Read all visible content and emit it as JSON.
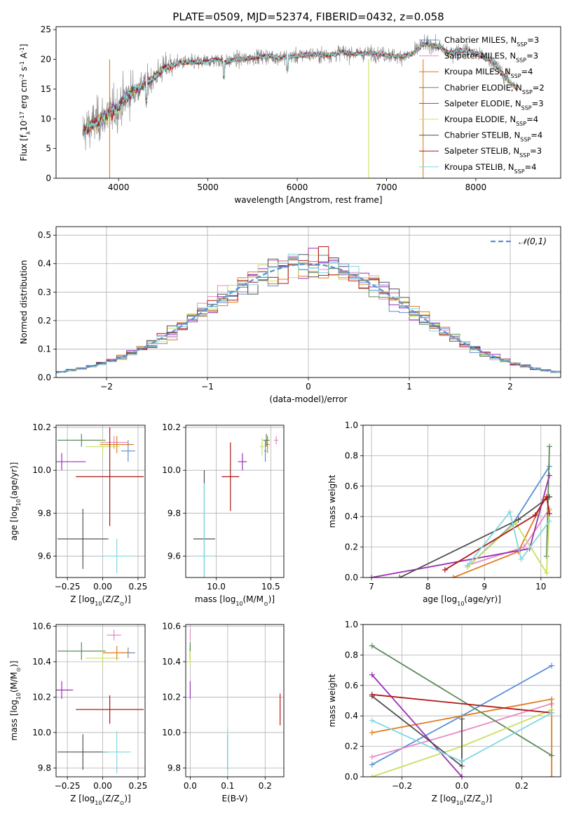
{
  "figure": {
    "title": "PLATE=0509, MJD=52374, FIBERID=0432, z=0.058"
  },
  "legend_models": [
    {
      "label": "Chabrier MILES, N$_{SSP}$=3",
      "color": "#5b8fd6"
    },
    {
      "label": "Salpeter MILES, N$_{SSP}$=3",
      "color": "#e78ac3"
    },
    {
      "label": "Kroupa MILES, N$_{SSP}$=4",
      "color": "#e07b1f"
    },
    {
      "label": "Chabrier ELODIE, N$_{SSP}$=2",
      "color": "#5a8a5a"
    },
    {
      "label": "Salpeter ELODIE, N$_{SSP}$=3",
      "color": "#9b30b5"
    },
    {
      "label": "Kroupa ELODIE, N$_{SSP}$=4",
      "color": "#c8e060"
    },
    {
      "label": "Chabrier STELIB, N$_{SSP}$=4",
      "color": "#505050"
    },
    {
      "label": "Salpeter STELIB, N$_{SSP}$=3",
      "color": "#b01818"
    },
    {
      "label": "Kroupa STELIB, N$_{SSP}$=4",
      "color": "#7fd8e0"
    }
  ],
  "chart_data": [
    {
      "id": "spectrum",
      "type": "line",
      "title": "PLATE=0509, MJD=52374, FIBERID=0432, z=0.058",
      "xlabel": "wavelength [Angstrom, rest frame]",
      "ylabel": "Flux [f$_{\\lambda}$10$^{-17}$ erg cm$^{-2}$ s$^{-1}$ A$^{-1}$]",
      "xlim": [
        3300,
        8950
      ],
      "ylim": [
        0,
        25.5
      ],
      "xticks": [
        4000,
        5000,
        6000,
        7000,
        8000
      ],
      "yticks": [
        0,
        5,
        10,
        15,
        20,
        25
      ],
      "data_color": "#808080",
      "continuum": [
        [
          3600,
          8
        ],
        [
          3700,
          9
        ],
        [
          3800,
          10
        ],
        [
          3900,
          11
        ],
        [
          4000,
          12
        ],
        [
          4100,
          14
        ],
        [
          4200,
          15
        ],
        [
          4300,
          16
        ],
        [
          4400,
          17
        ],
        [
          4500,
          18.5
        ],
        [
          4600,
          19
        ],
        [
          4700,
          19.5
        ],
        [
          4800,
          19.5
        ],
        [
          4900,
          19.5
        ],
        [
          5000,
          19.7
        ],
        [
          5100,
          20
        ],
        [
          5200,
          19.5
        ],
        [
          5300,
          20
        ],
        [
          5400,
          20
        ],
        [
          5500,
          20.3
        ],
        [
          5600,
          20.5
        ],
        [
          5700,
          20.5
        ],
        [
          5800,
          20.3
        ],
        [
          5900,
          20.5
        ],
        [
          6000,
          20.5
        ],
        [
          6100,
          20.8
        ],
        [
          6200,
          20.8
        ],
        [
          6300,
          20.7
        ],
        [
          6400,
          20.8
        ],
        [
          6500,
          21.2
        ],
        [
          6600,
          21
        ],
        [
          6700,
          21
        ],
        [
          6800,
          21
        ],
        [
          6900,
          21
        ],
        [
          7000,
          20.8
        ],
        [
          7100,
          20.5
        ],
        [
          7200,
          20.5
        ],
        [
          7300,
          21
        ],
        [
          7400,
          22.5
        ],
        [
          7500,
          22.5
        ],
        [
          7600,
          22
        ],
        [
          7700,
          21
        ],
        [
          7800,
          21.5
        ],
        [
          7900,
          21.5
        ],
        [
          8000,
          21
        ],
        [
          8100,
          20.3
        ],
        [
          8200,
          19.5
        ],
        [
          8300,
          17.5
        ],
        [
          8400,
          16
        ],
        [
          8460,
          15
        ]
      ]
    },
    {
      "id": "residual-histogram",
      "type": "area",
      "xlabel": "(data-model)/error",
      "ylabel": "Normed distribution",
      "xlim": [
        -2.5,
        2.5
      ],
      "ylim": [
        0,
        0.53
      ],
      "xticks": [
        -2,
        -1,
        0,
        1,
        2
      ],
      "yticks": [
        0.0,
        0.1,
        0.2,
        0.3,
        0.4,
        0.5
      ],
      "legend": "$\\mathcal{N}(0,1)$",
      "bin_width": 0.1,
      "curve": {
        "mu": 0,
        "sigma": 1,
        "color": "#5b8fd6"
      }
    },
    {
      "id": "age-vs-metallicity",
      "type": "scatter",
      "xlabel": "Z [log$_{10}$(Z/Z$_{\\odot}$)]",
      "ylabel": "age  [log$_{10}$(age/yr)]",
      "xlim": [
        -0.33,
        0.3
      ],
      "ylim": [
        9.5,
        10.21
      ],
      "xticks": [
        -0.25,
        0.0,
        0.25
      ],
      "yticks": [
        9.6,
        9.8,
        10.0,
        10.2
      ],
      "points": [
        {
          "model": 0,
          "x": 0.18,
          "y": 10.09,
          "xerr": 0.05,
          "yerr": 0.05
        },
        {
          "model": 1,
          "x": 0.08,
          "y": 10.13,
          "xerr": 0.1,
          "yerr": 0.03
        },
        {
          "model": 2,
          "x": 0.1,
          "y": 10.12,
          "xerr": 0.12,
          "yerr": 0.04
        },
        {
          "model": 3,
          "x": -0.15,
          "y": 10.14,
          "xerr": 0.17,
          "yerr": 0.03
        },
        {
          "model": 4,
          "x": -0.29,
          "y": 10.04,
          "xerr": 0.17,
          "yerr": 0.04
        },
        {
          "model": 5,
          "x": 0.0,
          "y": 10.11,
          "xerr": 0.12,
          "yerr": 0.04
        },
        {
          "model": 6,
          "x": -0.14,
          "y": 9.68,
          "xerr": 0.18,
          "yerr": 0.14
        },
        {
          "model": 7,
          "x": 0.05,
          "y": 9.97,
          "xerr": 0.24,
          "yerr": 0.23
        },
        {
          "model": 8,
          "x": 0.1,
          "y": 9.6,
          "xerr": 0.1,
          "yerr": 0.08
        }
      ]
    },
    {
      "id": "age-vs-mass",
      "type": "scatter",
      "xlabel": "mass [log$_{10}$(M/M$_{\\odot}$)]",
      "ylabel": "",
      "xlim": [
        9.72,
        10.62
      ],
      "ylim": [
        9.5,
        10.21
      ],
      "xticks": [
        10.0,
        10.5
      ],
      "yticks": [
        9.6,
        9.8,
        10.0,
        10.2
      ],
      "points": [
        {
          "model": 0,
          "x": 10.45,
          "y": 10.09,
          "xerr": 0.01,
          "yerr": 0.05
        },
        {
          "model": 1,
          "x": 10.55,
          "y": 10.14,
          "xerr": 0.02,
          "yerr": 0.02
        },
        {
          "model": 2,
          "x": 10.47,
          "y": 10.12,
          "xerr": 0.02,
          "yerr": 0.04
        },
        {
          "model": 3,
          "x": 10.46,
          "y": 10.14,
          "xerr": 0.03,
          "yerr": 0.03
        },
        {
          "model": 4,
          "x": 10.24,
          "y": 10.04,
          "xerr": 0.04,
          "yerr": 0.04
        },
        {
          "model": 5,
          "x": 10.42,
          "y": 10.11,
          "xerr": 0.02,
          "yerr": 0.04
        },
        {
          "model": 6,
          "x": 9.89,
          "y": 9.68,
          "xerr": 0.1,
          "yerr": 0.32
        },
        {
          "model": 7,
          "x": 10.13,
          "y": 9.97,
          "xerr": 0.08,
          "yerr": 0.16
        },
        {
          "model": 8,
          "x": 9.89,
          "y": 9.6,
          "xerr": 0.08,
          "yerr": 0.34
        }
      ]
    },
    {
      "id": "mass-weight-vs-age",
      "type": "line",
      "xlabel": "age  [log$_{10}$(age/yr)]",
      "ylabel": "mass weight",
      "xlim": [
        6.85,
        10.35
      ],
      "ylim": [
        0,
        1.0
      ],
      "xticks": [
        7,
        8,
        9,
        10
      ],
      "yticks": [
        0.0,
        0.2,
        0.4,
        0.6,
        0.8,
        1.0
      ],
      "series": [
        {
          "model": 0,
          "x": [
            8.7,
            9.5,
            10.15
          ],
          "y": [
            0.07,
            0.35,
            0.73
          ]
        },
        {
          "model": 1,
          "x": [
            8.7,
            9.7,
            10.15
          ],
          "y": [
            0.08,
            0.2,
            0.45
          ]
        },
        {
          "model": 2,
          "x": [
            8.45,
            9.6,
            10.05,
            10.15
          ],
          "y": [
            0.0,
            0.17,
            0.51,
            0.53
          ]
        },
        {
          "model": 3,
          "x": [
            10.1,
            10.15
          ],
          "y": [
            0.14,
            0.86
          ]
        },
        {
          "model": 4,
          "x": [
            7.0,
            9.8,
            10.15
          ],
          "y": [
            0.0,
            0.19,
            0.67
          ]
        },
        {
          "model": 5,
          "x": [
            8.7,
            9.55,
            10.1,
            10.15
          ],
          "y": [
            0.07,
            0.36,
            0.03,
            0.44
          ]
        },
        {
          "model": 6,
          "x": [
            7.5,
            9.6,
            10.15
          ],
          "y": [
            0.0,
            0.38,
            0.53
          ]
        },
        {
          "model": 7,
          "x": [
            8.3,
            9.9,
            10.1,
            10.15
          ],
          "y": [
            0.05,
            0.41,
            0.53,
            0.42
          ]
        },
        {
          "model": 8,
          "x": [
            8.7,
            9.45,
            9.65,
            10.15
          ],
          "y": [
            0.08,
            0.43,
            0.12,
            0.37
          ]
        }
      ]
    },
    {
      "id": "mass-vs-metallicity",
      "type": "scatter",
      "xlabel": "Z [log$_{10}$(Z/Z$_{\\odot}$)]",
      "ylabel": "mass [log$_{10}$(M/M$_{\\odot}$)]",
      "xlim": [
        -0.33,
        0.3
      ],
      "ylim": [
        9.75,
        10.61
      ],
      "xticks": [
        -0.25,
        0.0,
        0.25
      ],
      "yticks": [
        9.8,
        10.0,
        10.2,
        10.4,
        10.6
      ],
      "points": [
        {
          "model": 0,
          "x": 0.18,
          "y": 10.45,
          "xerr": 0.05,
          "yerr": 0.03
        },
        {
          "model": 1,
          "x": 0.08,
          "y": 10.55,
          "xerr": 0.05,
          "yerr": 0.03
        },
        {
          "model": 2,
          "x": 0.1,
          "y": 10.45,
          "xerr": 0.1,
          "yerr": 0.04
        },
        {
          "model": 3,
          "x": -0.15,
          "y": 10.46,
          "xerr": 0.17,
          "yerr": 0.05
        },
        {
          "model": 4,
          "x": -0.29,
          "y": 10.24,
          "xerr": 0.08,
          "yerr": 0.05
        },
        {
          "model": 5,
          "x": 0.0,
          "y": 10.42,
          "xerr": 0.12,
          "yerr": 0.04
        },
        {
          "model": 6,
          "x": -0.14,
          "y": 9.89,
          "xerr": 0.18,
          "yerr": 0.1
        },
        {
          "model": 7,
          "x": 0.05,
          "y": 10.13,
          "xerr": 0.24,
          "yerr": 0.08
        },
        {
          "model": 8,
          "x": 0.1,
          "y": 9.89,
          "xerr": 0.1,
          "yerr": 0.12
        }
      ]
    },
    {
      "id": "mass-vs-extinction",
      "type": "scatter",
      "xlabel": "E(B-V)",
      "ylabel": "",
      "xlim": [
        -0.012,
        0.25
      ],
      "ylim": [
        9.75,
        10.61
      ],
      "xticks": [
        0.0,
        0.1,
        0.2
      ],
      "yticks": [
        9.8,
        10.0,
        10.2,
        10.4,
        10.6
      ],
      "points": [
        {
          "model": 0,
          "x": 0.0,
          "y": 10.45,
          "xerr": 0,
          "yerr": 0.03
        },
        {
          "model": 1,
          "x": 0.0,
          "y": 10.55,
          "xerr": 0,
          "yerr": 0.03
        },
        {
          "model": 2,
          "x": 0.0,
          "y": 10.45,
          "xerr": 0,
          "yerr": 0.04
        },
        {
          "model": 3,
          "x": 0.0,
          "y": 10.46,
          "xerr": 0,
          "yerr": 0.05
        },
        {
          "model": 4,
          "x": 0.0,
          "y": 10.24,
          "xerr": 0,
          "yerr": 0.05
        },
        {
          "model": 5,
          "x": 0.0,
          "y": 10.42,
          "xerr": 0,
          "yerr": 0.04
        },
        {
          "model": 6,
          "x": 0.1,
          "y": 9.89,
          "xerr": 0,
          "yerr": 0.1
        },
        {
          "model": 7,
          "x": 0.24,
          "y": 10.13,
          "xerr": 0,
          "yerr": 0.09
        },
        {
          "model": 8,
          "x": 0.1,
          "y": 9.89,
          "xerr": 0,
          "yerr": 0.13
        }
      ]
    },
    {
      "id": "mass-weight-vs-metallicity",
      "type": "line",
      "xlabel": "Z [log$_{10}$(Z/Z$_{\\odot}$)]",
      "ylabel": "mass weight",
      "xlim": [
        -0.33,
        0.33
      ],
      "ylim": [
        0,
        1.0
      ],
      "xticks": [
        -0.2,
        0.0,
        0.2
      ],
      "yticks": [
        0.0,
        0.2,
        0.4,
        0.6,
        0.8,
        1.0
      ],
      "series": [
        {
          "model": 0,
          "x": [
            -0.3,
            0.0,
            0.3
          ],
          "y": [
            0.08,
            0.4,
            0.73
          ]
        },
        {
          "model": 1,
          "x": [
            -0.3,
            0.0,
            0.3
          ],
          "y": [
            0.13,
            0.3,
            0.48
          ]
        },
        {
          "model": 2,
          "x": [
            -0.3,
            0.3,
            0.3
          ],
          "y": [
            0.29,
            0.51,
            0.0
          ]
        },
        {
          "model": 3,
          "x": [
            -0.3,
            0.3
          ],
          "y": [
            0.86,
            0.14
          ]
        },
        {
          "model": 4,
          "x": [
            -0.3,
            0.0,
            0.0
          ],
          "y": [
            0.67,
            0.0,
            0.0
          ]
        },
        {
          "model": 5,
          "x": [
            -0.3,
            0.0,
            0.3
          ],
          "y": [
            0.0,
            0.2,
            0.44
          ]
        },
        {
          "model": 6,
          "x": [
            -0.3,
            0.0,
            0.0
          ],
          "y": [
            0.53,
            0.07,
            0.38
          ]
        },
        {
          "model": 7,
          "x": [
            -0.3,
            0.3
          ],
          "y": [
            0.54,
            0.42
          ]
        },
        {
          "model": 8,
          "x": [
            -0.3,
            0.0,
            0.3
          ],
          "y": [
            0.37,
            0.1,
            0.42
          ]
        }
      ]
    }
  ]
}
